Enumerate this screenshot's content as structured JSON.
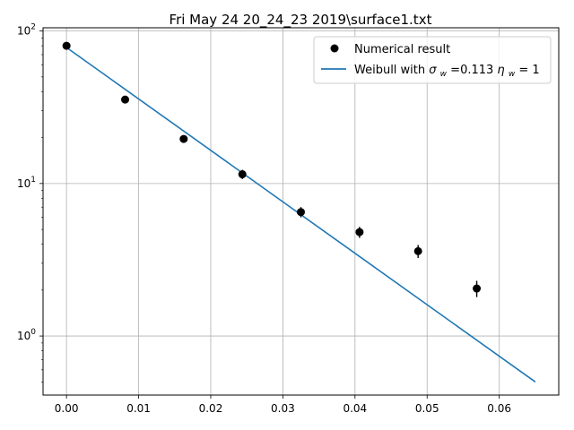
{
  "chart_data": {
    "type": "scatter",
    "title": "Fri May 24 20_24_23 2019\\surface1.txt",
    "xlabel": "",
    "ylabel": "",
    "xlim": [
      -0.00325,
      0.06825
    ],
    "ylim": [
      0.41,
      105
    ],
    "yscale": "log",
    "grid": true,
    "legend_position": "top-right",
    "x_ticks": [
      0.0,
      0.01,
      0.02,
      0.03,
      0.04,
      0.05,
      0.06
    ],
    "x_tick_labels": [
      "0.00",
      "0.01",
      "0.02",
      "0.03",
      "0.04",
      "0.05",
      "0.06"
    ],
    "y_ticks": [
      {
        "value": 1,
        "base": "10",
        "exp": "0"
      },
      {
        "value": 10,
        "base": "10",
        "exp": "1"
      },
      {
        "value": 100,
        "base": "10",
        "exp": "2"
      }
    ],
    "series": [
      {
        "name": "Numerical result",
        "kind": "points",
        "color": "#000000",
        "x": [
          0.0,
          0.00813,
          0.01625,
          0.02438,
          0.0325,
          0.04063,
          0.04875,
          0.05688
        ],
        "y": [
          80,
          35.5,
          19.6,
          11.5,
          6.5,
          4.8,
          3.6,
          2.05
        ],
        "y_err": [
          1.5,
          1.2,
          1.0,
          0.8,
          0.5,
          0.4,
          0.35,
          0.25
        ]
      },
      {
        "name_prefix": "Weibull with ",
        "sigma_symbol": "σ",
        "sigma_sub": "w",
        "sigma_text": " =0.113 ",
        "eta_symbol": "η",
        "eta_sub": "w",
        "eta_text": " = 1",
        "kind": "line",
        "color": "#1f77b4",
        "x": [
          0.0,
          0.065
        ],
        "y": [
          78,
          0.5
        ]
      }
    ]
  }
}
